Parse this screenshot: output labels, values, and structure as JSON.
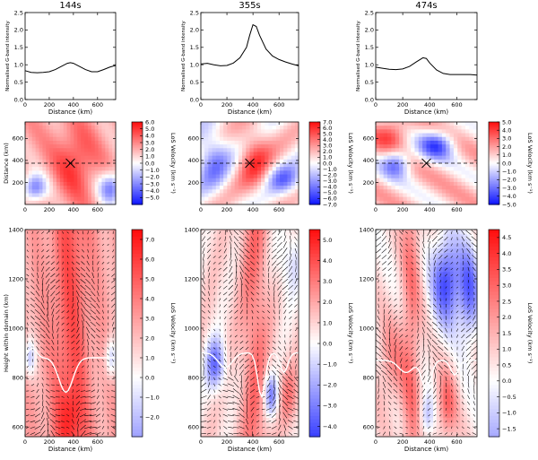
{
  "chart_data": [
    {
      "type": "line",
      "title": "144s",
      "xlabel": "Distance (km)",
      "ylabel": "Normalised G-band intensity",
      "xlim": [
        0,
        750
      ],
      "ylim": [
        0,
        2.5
      ],
      "xticks": [
        0,
        200,
        400,
        600
      ],
      "yticks": [
        0.0,
        0.5,
        1.0,
        1.5,
        2.0,
        2.5
      ],
      "x": [
        0,
        50,
        100,
        150,
        200,
        250,
        300,
        350,
        375,
        400,
        450,
        500,
        550,
        600,
        650,
        700,
        750
      ],
      "y": [
        0.83,
        0.78,
        0.77,
        0.78,
        0.8,
        0.86,
        0.95,
        1.04,
        1.06,
        1.04,
        0.95,
        0.86,
        0.8,
        0.8,
        0.86,
        0.93,
        0.98
      ]
    },
    {
      "type": "line",
      "title": "355s",
      "xlabel": "Distance (km)",
      "ylabel": "Normalised G-band intensity",
      "xlim": [
        0,
        750
      ],
      "ylim": [
        0,
        2.5
      ],
      "xticks": [
        0,
        200,
        400,
        600
      ],
      "yticks": [
        0.0,
        0.5,
        1.0,
        1.5,
        2.0,
        2.5
      ],
      "x": [
        0,
        50,
        100,
        150,
        200,
        250,
        300,
        350,
        375,
        400,
        425,
        450,
        500,
        550,
        600,
        650,
        700,
        750
      ],
      "y": [
        1.02,
        1.04,
        1.0,
        0.97,
        0.98,
        1.05,
        1.2,
        1.5,
        1.85,
        2.15,
        2.1,
        1.85,
        1.45,
        1.25,
        1.15,
        1.08,
        1.02,
        0.97
      ]
    },
    {
      "type": "line",
      "title": "474s",
      "xlabel": "Distance (km)",
      "ylabel": "Normalised G-band intensity",
      "xlim": [
        0,
        750
      ],
      "ylim": [
        0,
        2.5
      ],
      "xticks": [
        0,
        200,
        400,
        600
      ],
      "yticks": [
        0.0,
        0.5,
        1.0,
        1.5,
        2.0,
        2.5
      ],
      "x": [
        0,
        50,
        100,
        150,
        200,
        250,
        300,
        350,
        375,
        400,
        450,
        500,
        550,
        600,
        650,
        700,
        750
      ],
      "y": [
        0.93,
        0.9,
        0.87,
        0.86,
        0.88,
        0.95,
        1.08,
        1.2,
        1.18,
        1.05,
        0.85,
        0.75,
        0.72,
        0.72,
        0.72,
        0.72,
        0.7
      ]
    },
    {
      "type": "heatmap",
      "xlabel": "",
      "ylabel": "Distance (km)",
      "xlim": [
        0,
        750
      ],
      "ylim": [
        0,
        750
      ],
      "xticks": [
        0,
        200,
        400,
        600
      ],
      "yticks": [
        200,
        400,
        600
      ],
      "marker": [
        375,
        375
      ],
      "dashed_line_y": 375,
      "colorbar": {
        "label": "LoS Velocity (km s⁻¹)",
        "vmin": -6.0,
        "vmax": 6.0,
        "ticks": [
          "6.0",
          "5.0",
          "4.0",
          "3.0",
          "2.0",
          "1.0",
          "0.0",
          "−1.0",
          "−2.0",
          "−3.0",
          "−4.0",
          "−5.0"
        ]
      }
    },
    {
      "type": "heatmap",
      "xlabel": "",
      "ylabel": "",
      "xlim": [
        0,
        750
      ],
      "ylim": [
        0,
        750
      ],
      "xticks": [
        0,
        200,
        400,
        600
      ],
      "yticks": [
        200,
        400,
        600
      ],
      "marker": [
        375,
        375
      ],
      "dashed_line_y": 375,
      "colorbar": {
        "label": "LoS Velocity (km s⁻¹)",
        "vmin": -7.0,
        "vmax": 7.0,
        "ticks": [
          "7.0",
          "6.0",
          "5.0",
          "4.0",
          "3.0",
          "2.0",
          "1.0",
          "0.0",
          "−1.0",
          "−2.0",
          "−3.0",
          "−4.0",
          "−5.0",
          "−6.0",
          "−7.0"
        ]
      }
    },
    {
      "type": "heatmap",
      "xlabel": "",
      "ylabel": "",
      "xlim": [
        0,
        750
      ],
      "ylim": [
        0,
        750
      ],
      "xticks": [
        0,
        200,
        400,
        600
      ],
      "yticks": [
        200,
        400,
        600
      ],
      "marker": [
        375,
        375
      ],
      "dashed_line_y": 375,
      "colorbar": {
        "label": "LoS Velocity (km s⁻¹)",
        "vmin": -5.0,
        "vmax": 5.0,
        "ticks": [
          "5.0",
          "4.0",
          "3.0",
          "2.0",
          "1.0",
          "0.0",
          "−1.0",
          "−2.0",
          "−3.0",
          "−4.0",
          "−5.0"
        ]
      }
    },
    {
      "type": "heatmap",
      "xlabel": "Distance (km)",
      "ylabel": "Height within domain (km)",
      "xlim": [
        0,
        750
      ],
      "ylim": [
        560,
        1400
      ],
      "xticks": [
        0,
        200,
        400,
        600
      ],
      "yticks": [
        600,
        800,
        1000,
        1200,
        1400
      ],
      "overlay": "velocity vectors",
      "colorbar": {
        "label": "LoS Velocity (km s⁻¹)",
        "vmin": -3.0,
        "vmax": 7.5,
        "ticks": [
          "7.0",
          "6.0",
          "5.0",
          "4.0",
          "3.0",
          "2.0",
          "1.0",
          "0.0",
          "−1.0",
          "−2.0"
        ]
      }
    },
    {
      "type": "heatmap",
      "xlabel": "Distance (km)",
      "ylabel": "",
      "xlim": [
        0,
        750
      ],
      "ylim": [
        560,
        1400
      ],
      "xticks": [
        0,
        200,
        400,
        600
      ],
      "yticks": [
        600,
        800,
        1000,
        1200,
        1400
      ],
      "overlay": "velocity vectors",
      "colorbar": {
        "label": "LoS Velocity (km s⁻¹)",
        "vmin": -4.5,
        "vmax": 5.5,
        "ticks": [
          "5.0",
          "4.0",
          "3.0",
          "2.0",
          "1.0",
          "0.0",
          "−1.0",
          "−2.0",
          "−3.0",
          "−4.0"
        ]
      }
    },
    {
      "type": "heatmap",
      "xlabel": "Distance (km)",
      "ylabel": "",
      "xlim": [
        0,
        750
      ],
      "ylim": [
        560,
        1400
      ],
      "xticks": [
        0,
        200,
        400,
        600
      ],
      "yticks": [
        600,
        800,
        1000,
        1200,
        1400
      ],
      "overlay": "velocity vectors",
      "colorbar": {
        "label": "LoS Velocity (km s⁻¹)",
        "vmin": -1.75,
        "vmax": 4.75,
        "ticks": [
          "4.5",
          "4.0",
          "3.5",
          "3.0",
          "2.5",
          "2.0",
          "1.5",
          "1.0",
          "0.5",
          "0.0",
          "−0.5",
          "−1.0",
          "−1.5"
        ]
      }
    }
  ]
}
